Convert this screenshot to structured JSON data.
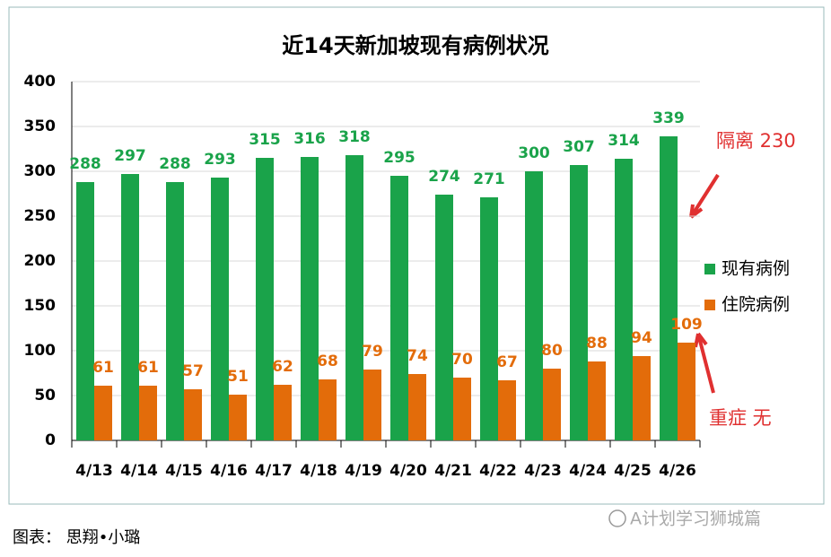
{
  "chart_data": {
    "type": "bar",
    "title": "近14天新加坡现有病例状况",
    "categories": [
      "4/13",
      "4/14",
      "4/15",
      "4/16",
      "4/17",
      "4/18",
      "4/19",
      "4/20",
      "4/21",
      "4/22",
      "4/23",
      "4/24",
      "4/25",
      "4/26"
    ],
    "series": [
      {
        "name": "现有病例",
        "color": "#1aa34a",
        "values": [
          288,
          297,
          288,
          293,
          315,
          316,
          318,
          295,
          274,
          271,
          300,
          307,
          314,
          339
        ]
      },
      {
        "name": "住院病例",
        "color": "#e36c0a",
        "values": [
          61,
          61,
          57,
          51,
          62,
          68,
          79,
          74,
          70,
          67,
          80,
          88,
          94,
          109
        ]
      }
    ],
    "ylim": [
      0,
      400
    ],
    "yticks": [
      0,
      50,
      100,
      150,
      200,
      250,
      300,
      350,
      400
    ],
    "grid": true,
    "legend": "right",
    "annotations": [
      "隔离 230",
      "重症 无"
    ]
  },
  "caption": "图表： 思翔•小璐",
  "watermark": "A计划学习狮城篇"
}
